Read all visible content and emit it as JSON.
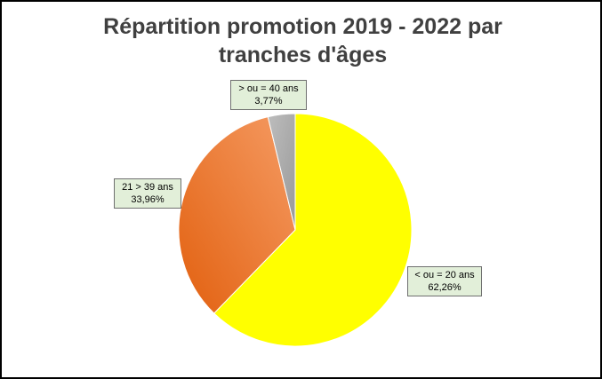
{
  "chart_data": {
    "type": "pie",
    "title": "Répartition promotion 2019 - 2022 par tranches d'âges",
    "categories": [
      "< ou = 20 ans",
      "21 > 39 ans",
      "> ou = 40 ans"
    ],
    "values": [
      62.26,
      33.96,
      3.77
    ],
    "value_labels": [
      "62,26%",
      "33,96%",
      "3,77%"
    ],
    "colors": [
      "#ffff00",
      "#f08230",
      "#a6a6a6"
    ],
    "start_angle": "12 o'clock, clockwise",
    "legend": "none (data labels)"
  }
}
